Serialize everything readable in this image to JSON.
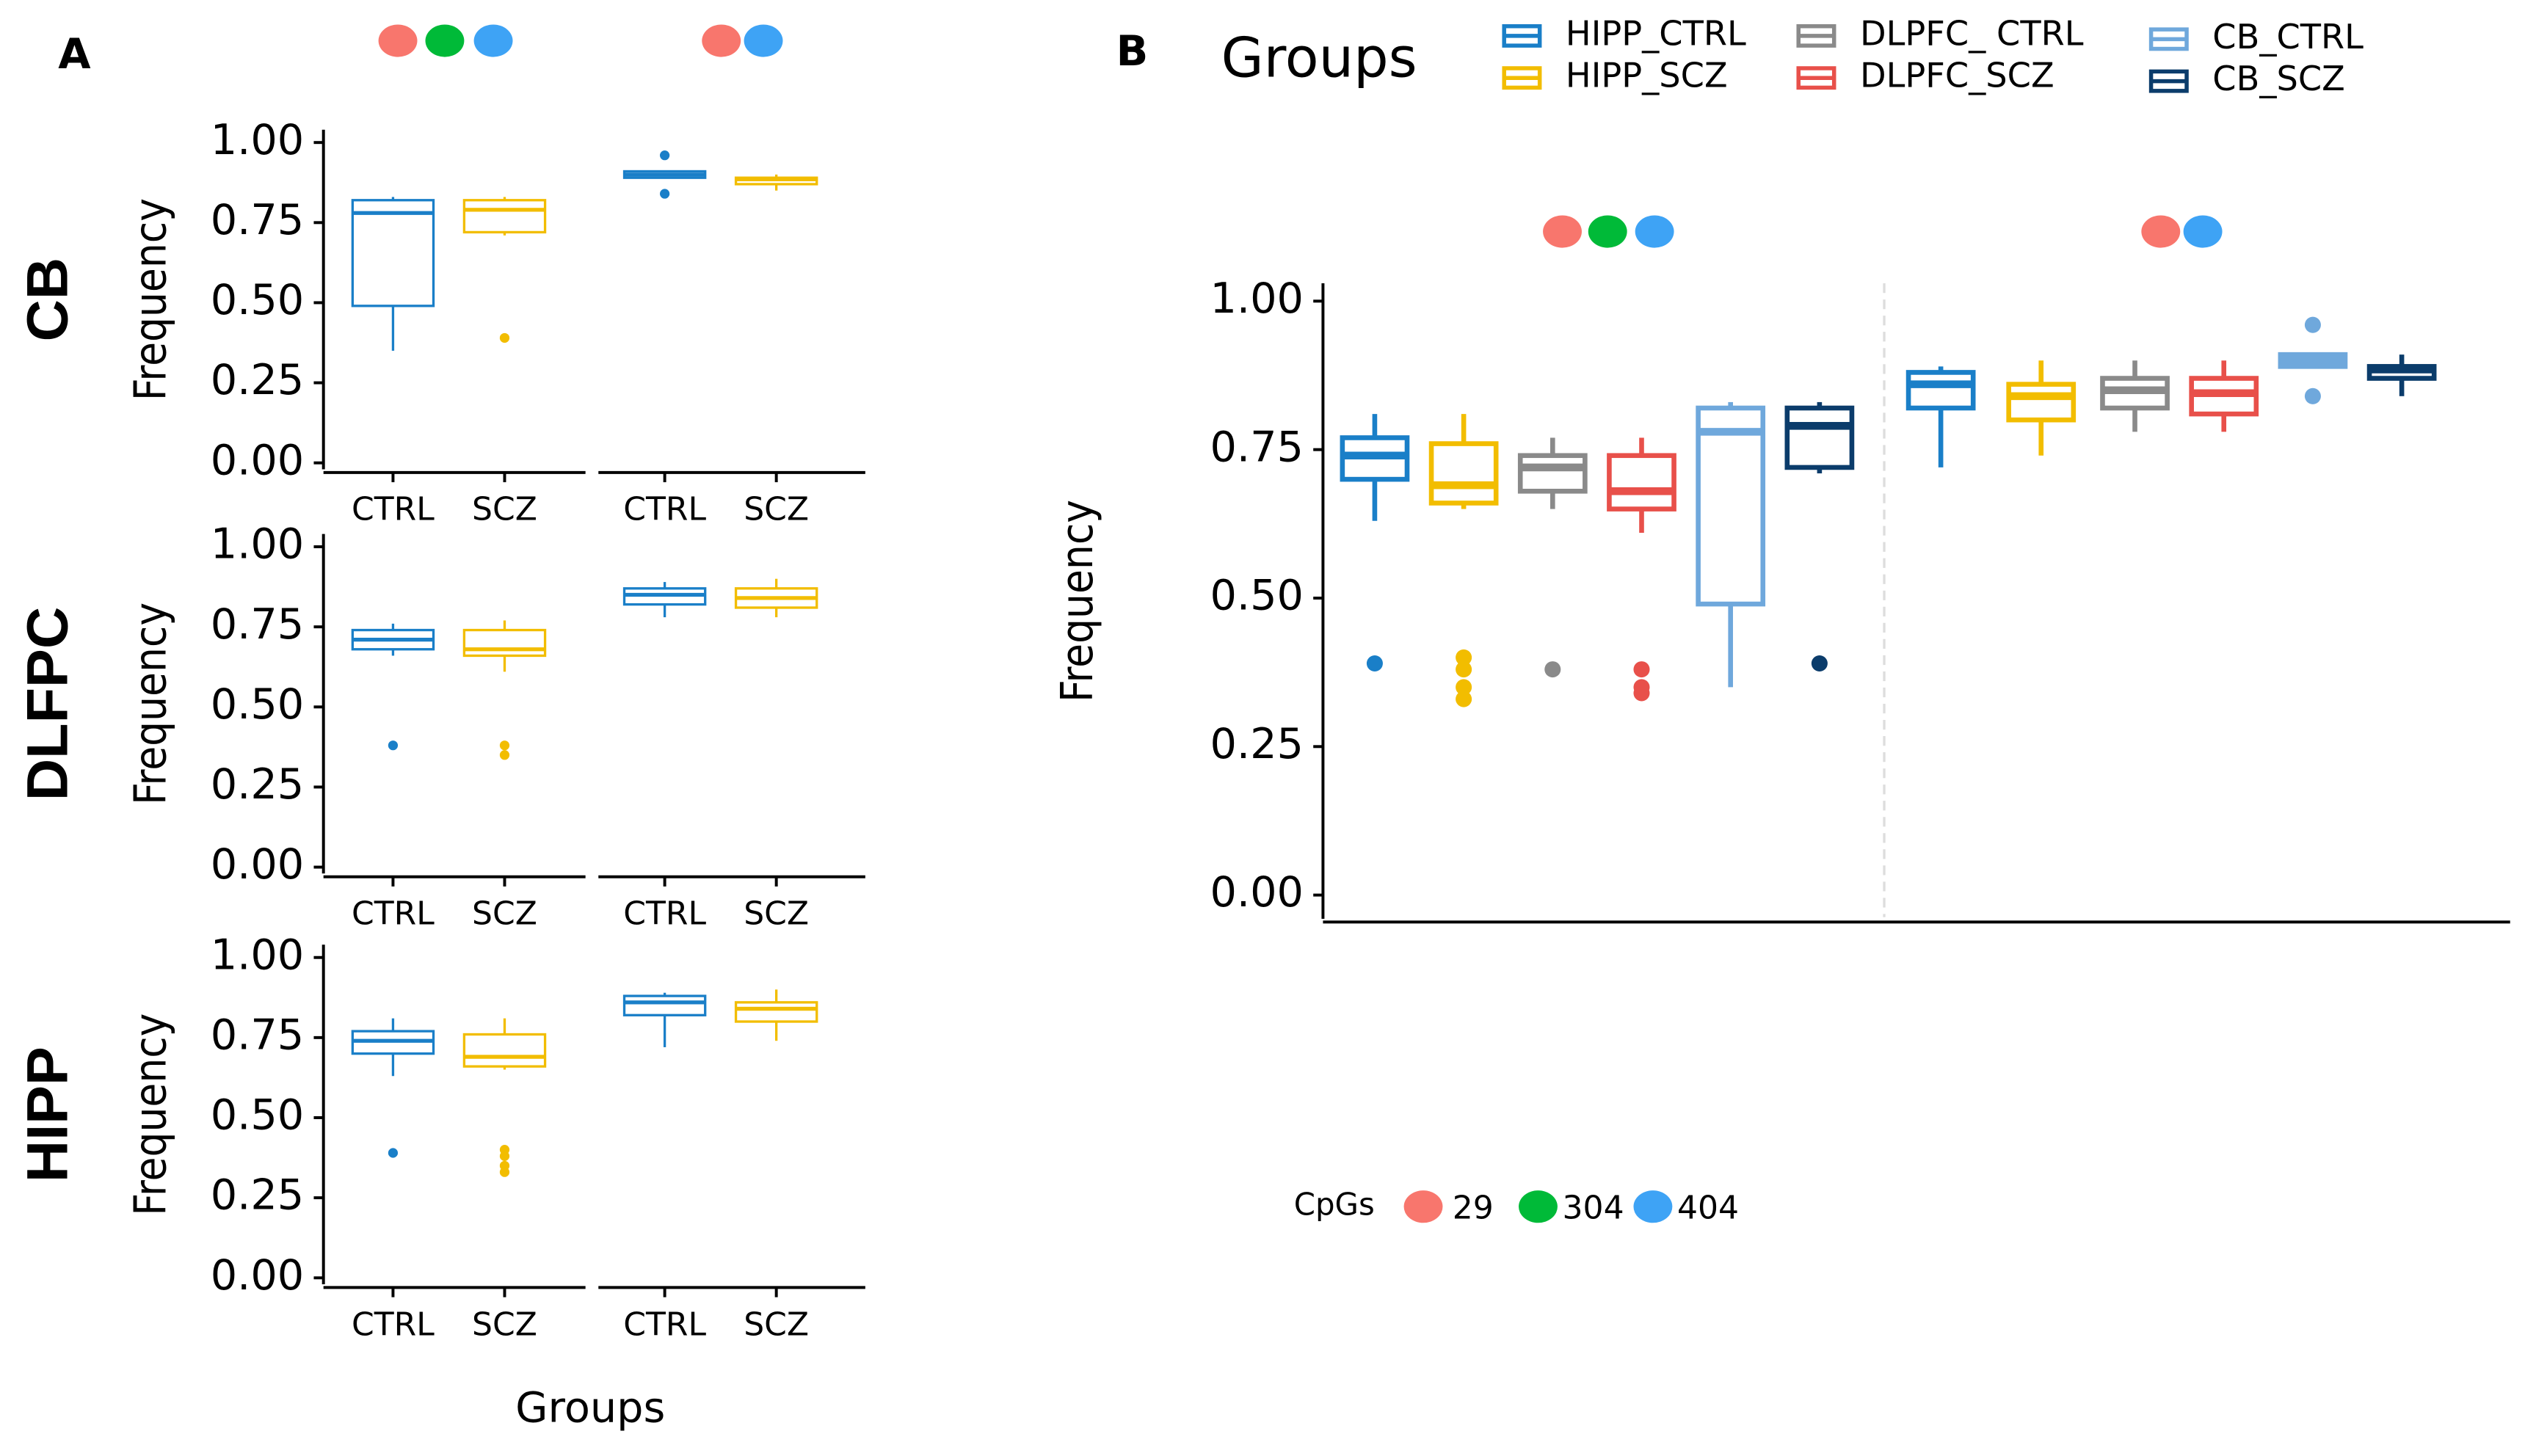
{
  "chart_data": [
    {
      "type": "box",
      "label": "A",
      "row_label": "CB",
      "ylabel": "Frequency",
      "ylim": [
        -0.02,
        1.04
      ],
      "yticks": [
        {
          "value": 0,
          "label": "0.00"
        },
        {
          "value": 0.25,
          "label": "0.25"
        },
        {
          "value": 0.5,
          "label": "0.50"
        },
        {
          "value": 0.75,
          "label": "0.75"
        },
        {
          "value": 1,
          "label": "1.00"
        }
      ],
      "facets": [
        {
          "strip": [
            "#f8766d",
            "#00ba38",
            "#3ea3f5"
          ],
          "categories": [
            "CTRL",
            "SCZ"
          ],
          "colors": [
            "#1a7fc8",
            "#f2bd00"
          ],
          "boxes": [
            {
              "min": 0.35,
              "q1": 0.49,
              "median": 0.78,
              "q3": 0.82,
              "max": 0.83,
              "outliers": []
            },
            {
              "min": 0.71,
              "q1": 0.72,
              "median": 0.79,
              "q3": 0.82,
              "max": 0.83,
              "outliers": [
                0.39
              ]
            }
          ]
        },
        {
          "strip": [
            "#f8766d",
            "#3ea3f5"
          ],
          "categories": [
            "CTRL",
            "SCZ"
          ],
          "colors": [
            "#1a7fc8",
            "#f2bd00"
          ],
          "boxes": [
            {
              "min": 0.89,
              "q1": 0.89,
              "median": 0.9,
              "q3": 0.91,
              "max": 0.91,
              "outliers": [
                0.96,
                0.84
              ]
            },
            {
              "min": 0.85,
              "q1": 0.87,
              "median": 0.885,
              "q3": 0.89,
              "max": 0.9,
              "outliers": []
            }
          ]
        }
      ]
    },
    {
      "type": "box",
      "row_label": "DLFPC",
      "ylabel": "Frequency",
      "ylim": [
        -0.02,
        1.04
      ],
      "yticks": [
        {
          "value": 0,
          "label": "0.00"
        },
        {
          "value": 0.25,
          "label": "0.25"
        },
        {
          "value": 0.5,
          "label": "0.50"
        },
        {
          "value": 0.75,
          "label": "0.75"
        },
        {
          "value": 1,
          "label": "1.00"
        }
      ],
      "facets": [
        {
          "categories": [
            "CTRL",
            "SCZ"
          ],
          "colors": [
            "#1a7fc8",
            "#f2bd00"
          ],
          "boxes": [
            {
              "min": 0.66,
              "q1": 0.68,
              "median": 0.71,
              "q3": 0.74,
              "max": 0.76,
              "outliers": [
                0.38
              ]
            },
            {
              "min": 0.61,
              "q1": 0.66,
              "median": 0.68,
              "q3": 0.74,
              "max": 0.77,
              "outliers": [
                0.38,
                0.35
              ]
            }
          ]
        },
        {
          "categories": [
            "CTRL",
            "SCZ"
          ],
          "colors": [
            "#1a7fc8",
            "#f2bd00"
          ],
          "boxes": [
            {
              "min": 0.78,
              "q1": 0.82,
              "median": 0.85,
              "q3": 0.87,
              "max": 0.89,
              "outliers": []
            },
            {
              "min": 0.78,
              "q1": 0.81,
              "median": 0.84,
              "q3": 0.87,
              "max": 0.9,
              "outliers": []
            }
          ]
        }
      ]
    },
    {
      "type": "box",
      "row_label": "HIPP",
      "ylabel": "Frequency",
      "xlabel": "Groups",
      "ylim": [
        -0.02,
        1.04
      ],
      "yticks": [
        {
          "value": 0,
          "label": "0.00"
        },
        {
          "value": 0.25,
          "label": "0.25"
        },
        {
          "value": 0.5,
          "label": "0.50"
        },
        {
          "value": 0.75,
          "label": "0.75"
        },
        {
          "value": 1,
          "label": "1.00"
        }
      ],
      "facets": [
        {
          "categories": [
            "CTRL",
            "SCZ"
          ],
          "colors": [
            "#1a7fc8",
            "#f2bd00"
          ],
          "boxes": [
            {
              "min": 0.63,
              "q1": 0.7,
              "median": 0.74,
              "q3": 0.77,
              "max": 0.81,
              "outliers": [
                0.39
              ]
            },
            {
              "min": 0.65,
              "q1": 0.66,
              "median": 0.69,
              "q3": 0.76,
              "max": 0.81,
              "outliers": [
                0.4,
                0.38,
                0.35,
                0.33
              ]
            }
          ]
        },
        {
          "categories": [
            "CTRL",
            "SCZ"
          ],
          "colors": [
            "#1a7fc8",
            "#f2bd00"
          ],
          "boxes": [
            {
              "min": 0.72,
              "q1": 0.82,
              "median": 0.86,
              "q3": 0.88,
              "max": 0.89,
              "outliers": []
            },
            {
              "min": 0.74,
              "q1": 0.8,
              "median": 0.84,
              "q3": 0.86,
              "max": 0.9,
              "outliers": []
            }
          ]
        }
      ]
    },
    {
      "type": "box",
      "label": "B",
      "legend_title": "Groups",
      "ylabel": "Frequency",
      "ylim": [
        -0.04,
        1.03
      ],
      "yticks": [
        {
          "value": 0,
          "label": "0.00"
        },
        {
          "value": 0.25,
          "label": "0.25"
        },
        {
          "value": 0.5,
          "label": "0.50"
        },
        {
          "value": 0.75,
          "label": "0.75"
        },
        {
          "value": 1,
          "label": "1.00"
        }
      ],
      "series": [
        {
          "name": "HIPP_CTRL",
          "color": "#1a7fc8"
        },
        {
          "name": "HIPP_SCZ",
          "color": "#f2bd00"
        },
        {
          "name": "DLPFC_ CTRL",
          "color": "#8a8a8a"
        },
        {
          "name": "DLPFC_SCZ",
          "color": "#e8504a"
        },
        {
          "name": "CB_CTRL",
          "color": "#6fa8dc"
        },
        {
          "name": "CB_SCZ",
          "color": "#0b3c6b"
        }
      ],
      "cpgs": {
        "title": "CpGs",
        "values": [
          29,
          304,
          404
        ],
        "colors": [
          "#f8766d",
          "#00ba38",
          "#3ea3f5"
        ]
      },
      "facets": [
        {
          "strip": [
            "#f8766d",
            "#00ba38",
            "#3ea3f5"
          ],
          "boxes": [
            {
              "min": 0.63,
              "q1": 0.7,
              "median": 0.74,
              "q3": 0.77,
              "max": 0.81,
              "outliers": [
                0.39
              ]
            },
            {
              "min": 0.65,
              "q1": 0.66,
              "median": 0.69,
              "q3": 0.76,
              "max": 0.81,
              "outliers": [
                0.4,
                0.38,
                0.35,
                0.33
              ]
            },
            {
              "min": 0.65,
              "q1": 0.68,
              "median": 0.72,
              "q3": 0.74,
              "max": 0.77,
              "outliers": [
                0.38
              ]
            },
            {
              "min": 0.61,
              "q1": 0.65,
              "median": 0.68,
              "q3": 0.74,
              "max": 0.77,
              "outliers": [
                0.38,
                0.35,
                0.34
              ]
            },
            {
              "min": 0.35,
              "q1": 0.49,
              "median": 0.78,
              "q3": 0.82,
              "max": 0.83,
              "outliers": []
            },
            {
              "min": 0.71,
              "q1": 0.72,
              "median": 0.79,
              "q3": 0.82,
              "max": 0.83,
              "outliers": [
                0.39
              ]
            }
          ]
        },
        {
          "strip": [
            "#f8766d",
            "#3ea3f5"
          ],
          "boxes": [
            {
              "min": 0.72,
              "q1": 0.82,
              "median": 0.86,
              "q3": 0.88,
              "max": 0.89,
              "outliers": []
            },
            {
              "min": 0.74,
              "q1": 0.8,
              "median": 0.84,
              "q3": 0.86,
              "max": 0.9,
              "outliers": []
            },
            {
              "min": 0.78,
              "q1": 0.82,
              "median": 0.85,
              "q3": 0.87,
              "max": 0.9,
              "outliers": []
            },
            {
              "min": 0.78,
              "q1": 0.81,
              "median": 0.845,
              "q3": 0.87,
              "max": 0.9,
              "outliers": []
            },
            {
              "min": 0.89,
              "q1": 0.89,
              "median": 0.9,
              "q3": 0.91,
              "max": 0.91,
              "outliers": [
                0.96,
                0.84
              ]
            },
            {
              "min": 0.84,
              "q1": 0.87,
              "median": 0.885,
              "q3": 0.89,
              "max": 0.91,
              "outliers": []
            }
          ]
        }
      ]
    }
  ]
}
